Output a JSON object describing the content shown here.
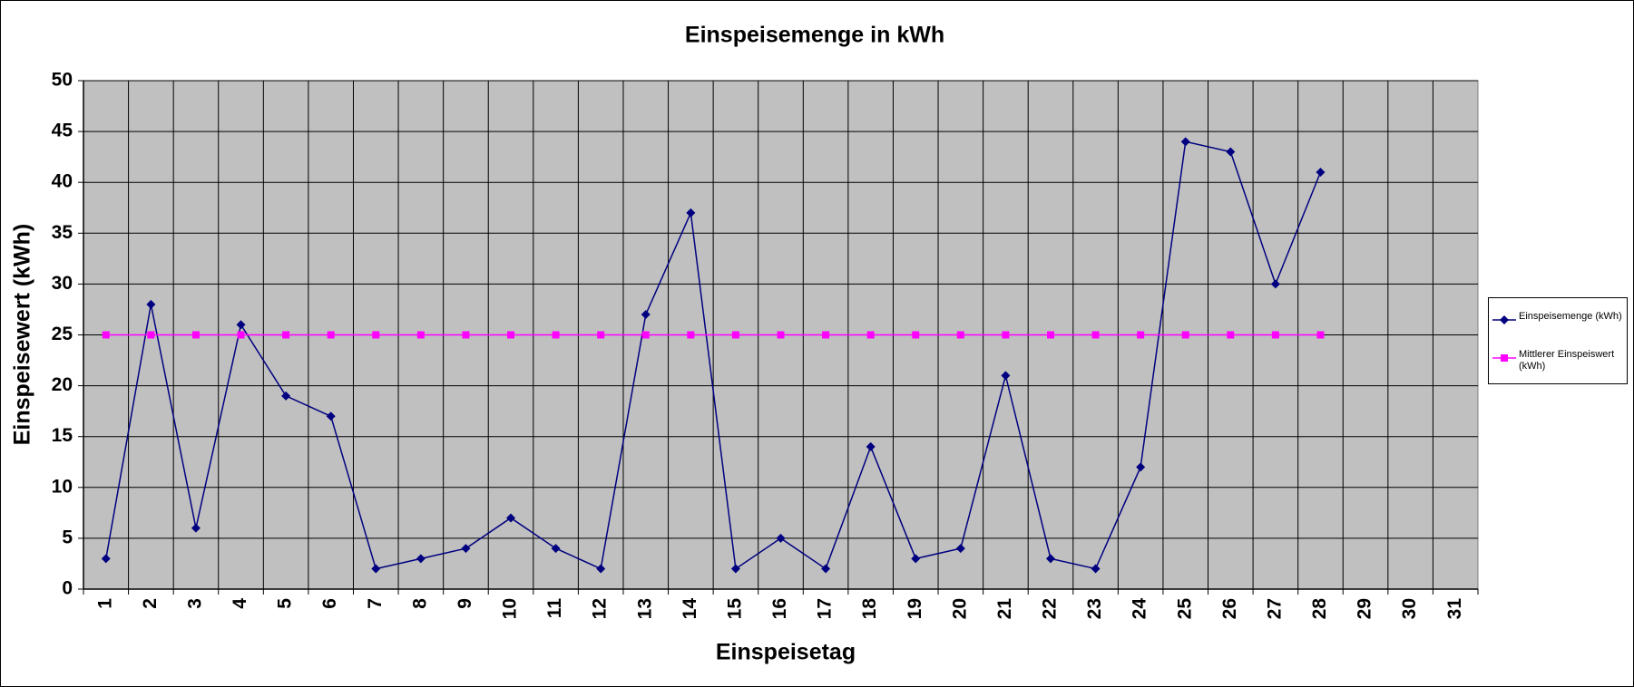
{
  "chart_data": {
    "type": "line",
    "title": "Einspeisemenge in kWh",
    "x_label": "Einspeisetag",
    "y_label": "Einspeisewert  (kWh)",
    "categories": [
      "1",
      "2",
      "3",
      "4",
      "5",
      "6",
      "7",
      "8",
      "9",
      "10",
      "11",
      "12",
      "13",
      "14",
      "15",
      "16",
      "17",
      "18",
      "19",
      "20",
      "21",
      "22",
      "23",
      "24",
      "25",
      "26",
      "27",
      "28",
      "29",
      "30",
      "31"
    ],
    "series": [
      {
        "name": "Einspeisemenge (kWh)",
        "color": "#000080",
        "marker": "diamond",
        "values": [
          3,
          28,
          6,
          26,
          19,
          17,
          2,
          3,
          4,
          7,
          4,
          2,
          27,
          37,
          2,
          5,
          2,
          14,
          3,
          4,
          21,
          3,
          2,
          12,
          44,
          43,
          30,
          41,
          null,
          null,
          null
        ]
      },
      {
        "name": "Mittlerer Einspeiswert (kWh)",
        "color": "#ff00ff",
        "marker": "square",
        "values": [
          25,
          25,
          25,
          25,
          25,
          25,
          25,
          25,
          25,
          25,
          25,
          25,
          25,
          25,
          25,
          25,
          25,
          25,
          25,
          25,
          25,
          25,
          25,
          25,
          25,
          25,
          25,
          25,
          null,
          null,
          null
        ]
      }
    ],
    "ylim": [
      0,
      50
    ],
    "yticks": [
      0,
      5,
      10,
      15,
      20,
      25,
      30,
      35,
      40,
      45,
      50
    ],
    "grid": true,
    "legend": "right",
    "plot_background": "#c0c0c0"
  }
}
